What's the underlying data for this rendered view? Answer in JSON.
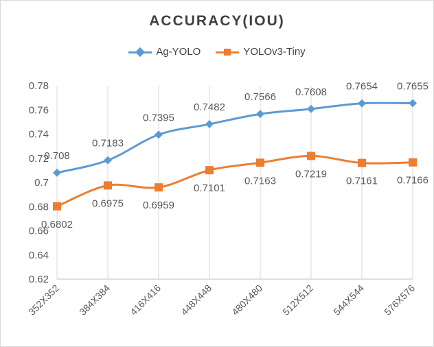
{
  "chart_data": {
    "type": "line",
    "title": "ACCURACY(IOU)",
    "xlabel": "",
    "ylabel": "",
    "categories": [
      "352X352",
      "384X384",
      "416X416",
      "448X448",
      "480X480",
      "512X512",
      "544X544",
      "576X576"
    ],
    "y_ticks": [
      "0.62",
      "0.64",
      "0.66",
      "0.68",
      "0.7",
      "0.72",
      "0.74",
      "0.76",
      "0.78"
    ],
    "ylim": [
      0.62,
      0.78
    ],
    "grid": "vertical",
    "legend_position": "top",
    "series": [
      {
        "name": "Ag-YOLO",
        "color": "#5b9bd5",
        "marker": "diamond",
        "values": [
          0.708,
          0.7183,
          0.7395,
          0.7482,
          0.7566,
          0.7608,
          0.7654,
          0.7655
        ],
        "labels": [
          "0.708",
          "0.7183",
          "0.7395",
          "0.7482",
          "0.7566",
          "0.7608",
          "0.7654",
          "0.7655"
        ]
      },
      {
        "name": "YOLOv3-Tiny",
        "color": "#ed7d31",
        "marker": "square",
        "values": [
          0.6802,
          0.6975,
          0.6959,
          0.7101,
          0.7163,
          0.7219,
          0.7161,
          0.7166
        ],
        "labels": [
          "0.6802",
          "0.6975",
          "0.6959",
          "0.7101",
          "0.7163",
          "0.7219",
          "0.7161",
          "0.7166"
        ]
      }
    ]
  }
}
